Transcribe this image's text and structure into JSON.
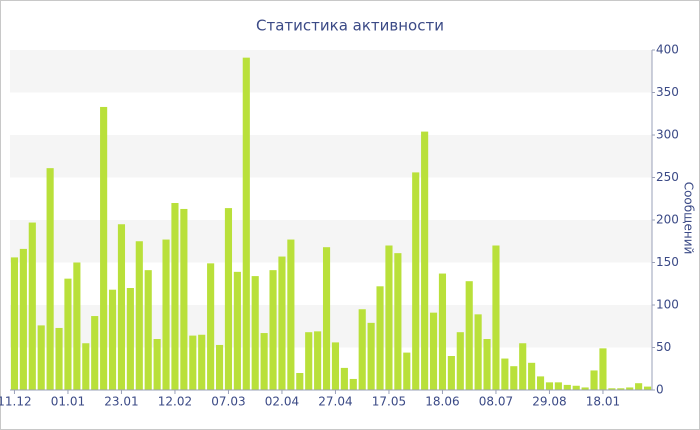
{
  "chart_data": {
    "type": "bar",
    "title": "Статистика активности",
    "y_label": "Сообщений",
    "categories": [
      "11.12",
      null,
      null,
      null,
      null,
      null,
      "01.01",
      null,
      null,
      null,
      null,
      null,
      "23.01",
      null,
      null,
      null,
      null,
      null,
      "12.02",
      null,
      null,
      null,
      null,
      null,
      "07.03",
      null,
      null,
      null,
      null,
      null,
      "02.04",
      null,
      null,
      null,
      null,
      null,
      "27.04",
      null,
      null,
      null,
      null,
      null,
      "17.05",
      null,
      null,
      null,
      null,
      null,
      "18.06",
      null,
      null,
      null,
      null,
      null,
      "08.07",
      null,
      null,
      null,
      null,
      null,
      "29.08",
      null,
      null,
      null,
      null,
      null,
      "18.01",
      null,
      null,
      null,
      null,
      null
    ],
    "values": [
      156,
      166,
      197,
      76,
      261,
      73,
      131,
      150,
      55,
      87,
      333,
      118,
      195,
      120,
      175,
      141,
      60,
      177,
      220,
      213,
      64,
      65,
      149,
      53,
      214,
      139,
      391,
      134,
      67,
      141,
      157,
      177,
      20,
      68,
      69,
      168,
      56,
      26,
      13,
      95,
      79,
      122,
      170,
      161,
      44,
      256,
      304,
      91,
      137,
      40,
      68,
      128,
      89,
      60,
      170,
      37,
      28,
      55,
      32,
      16,
      9,
      9,
      6,
      5,
      3,
      23,
      49,
      2,
      2,
      3,
      8,
      4
    ],
    "color": "#b9e03a",
    "ylim": [
      0,
      400
    ],
    "yticks": [
      0,
      50,
      100,
      150,
      200,
      250,
      300,
      350,
      400
    ],
    "grid": true
  }
}
